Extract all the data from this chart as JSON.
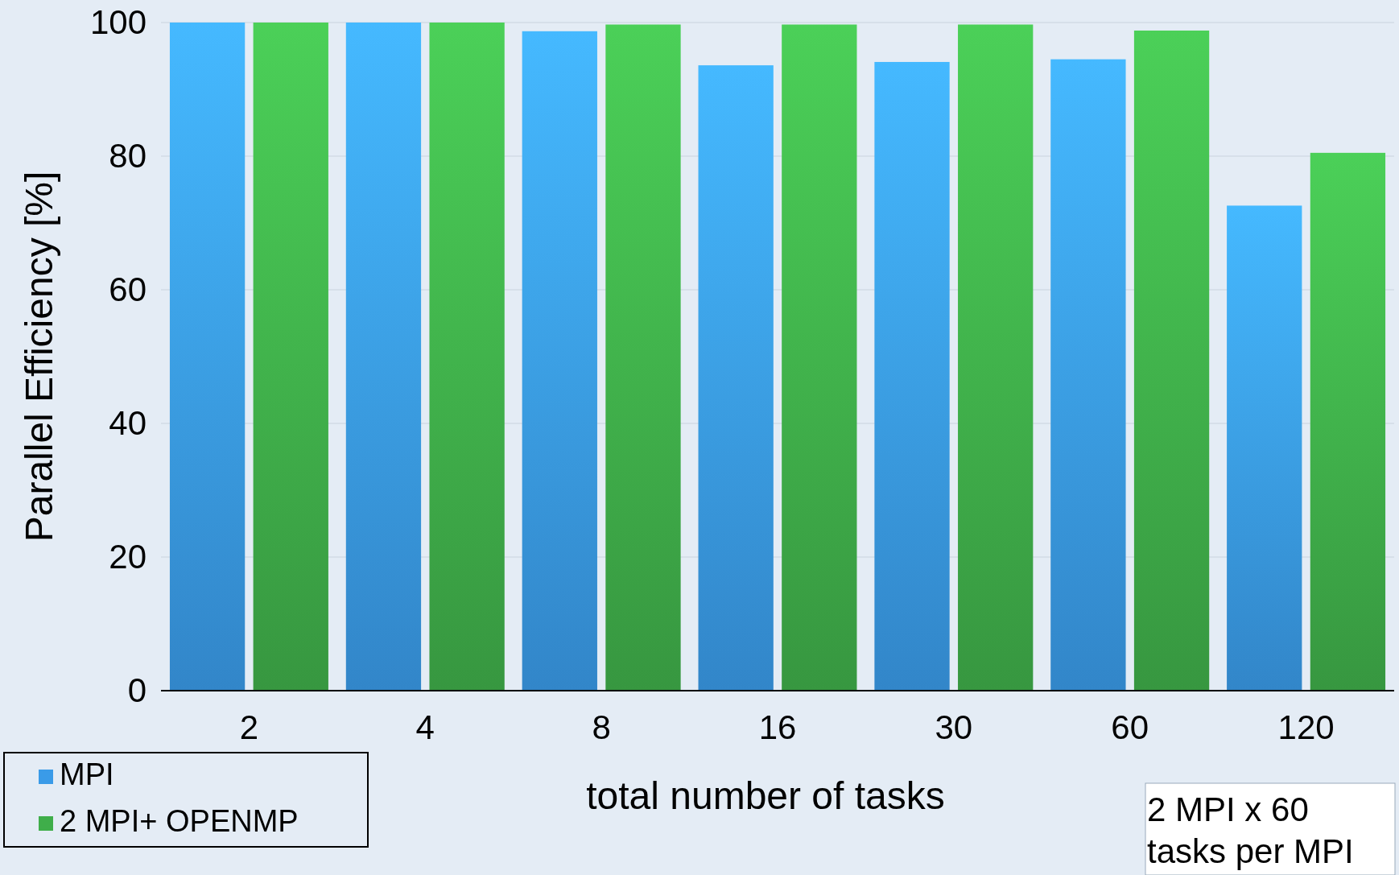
{
  "chart_data": {
    "type": "bar",
    "xlabel": "total number of tasks",
    "ylabel": "Parallel Efficiency [%]",
    "categories": [
      "2",
      "4",
      "8",
      "16",
      "30",
      "60",
      "120"
    ],
    "series": [
      {
        "name": "MPI",
        "color": "#3a9be8",
        "values": [
          100,
          100,
          98.7,
          93.6,
          94.1,
          94.5,
          72.6
        ]
      },
      {
        "name": "2 MPI+ OPENMP",
        "color": "#3fae4a",
        "values": [
          100,
          100,
          99.7,
          99.7,
          99.7,
          98.8,
          80.5
        ]
      }
    ],
    "ylim": [
      0,
      100
    ],
    "yticks": [
      0,
      20,
      40,
      60,
      80,
      100
    ],
    "grid": "y",
    "legend": "bottom left",
    "annotations": [
      "2 MPI x 60 tasks per MPI"
    ]
  }
}
